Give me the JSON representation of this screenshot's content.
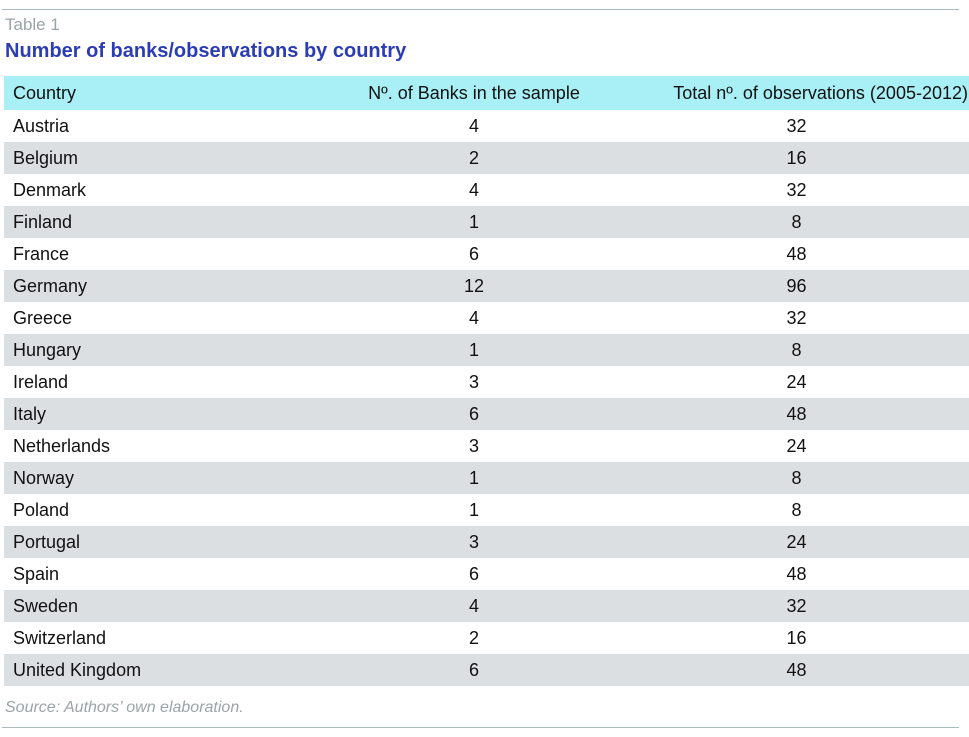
{
  "table_label": "Table 1",
  "title": "Number of banks/observations by country",
  "columns": {
    "country": "Country",
    "banks": "Nº. of Banks in the sample",
    "observations": "Total nº. of observations (2005-2012)"
  },
  "rows": [
    {
      "country": "Austria",
      "banks": "4",
      "observations": "32"
    },
    {
      "country": "Belgium",
      "banks": "2",
      "observations": "16"
    },
    {
      "country": "Denmark",
      "banks": "4",
      "observations": "32"
    },
    {
      "country": "Finland",
      "banks": "1",
      "observations": "8"
    },
    {
      "country": "France",
      "banks": "6",
      "observations": "48"
    },
    {
      "country": "Germany",
      "banks": "12",
      "observations": "96"
    },
    {
      "country": "Greece",
      "banks": "4",
      "observations": "32"
    },
    {
      "country": "Hungary",
      "banks": "1",
      "observations": "8"
    },
    {
      "country": "Ireland",
      "banks": "3",
      "observations": "24"
    },
    {
      "country": "Italy",
      "banks": "6",
      "observations": "48"
    },
    {
      "country": "Netherlands",
      "banks": "3",
      "observations": "24"
    },
    {
      "country": "Norway",
      "banks": "1",
      "observations": "8"
    },
    {
      "country": "Poland",
      "banks": "1",
      "observations": "8"
    },
    {
      "country": "Portugal",
      "banks": "3",
      "observations": "24"
    },
    {
      "country": "Spain",
      "banks": "6",
      "observations": "48"
    },
    {
      "country": "Sweden",
      "banks": "4",
      "observations": "32"
    },
    {
      "country": "Switzerland",
      "banks": "2",
      "observations": "16"
    },
    {
      "country": "United Kingdom",
      "banks": "6",
      "observations": "48"
    }
  ],
  "source": "Source: Authors’ own elaboration.",
  "colors": {
    "title": "#2b3cb5",
    "header_bg": "#a9f0f6",
    "stripe_bg": "#dcdfe2",
    "muted_text": "#9aa4a6"
  }
}
